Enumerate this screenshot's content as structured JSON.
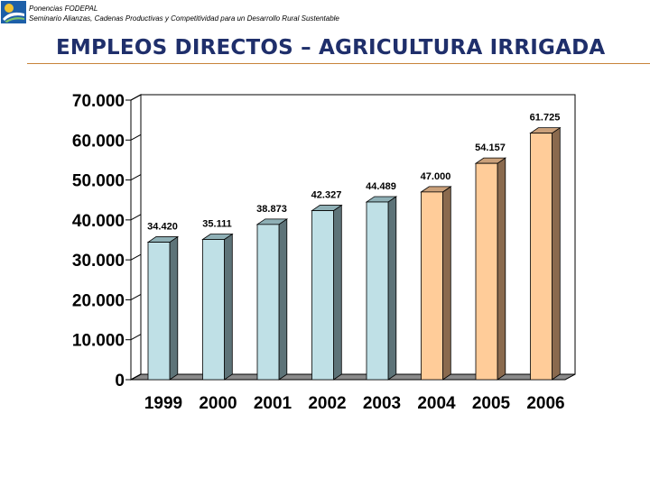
{
  "header": {
    "line1": "Ponencias FODEPAL",
    "line2": "Seminario Alianzas, Cadenas Productivas y Competitividad para un Desarrollo Rural Sustentable",
    "title": "EMPLEOS DIRECTOS – AGRICULTURA IRRIGADA"
  },
  "colors": {
    "title": "#1f2f6b",
    "rule": "#c8843a",
    "bar_blue_front": "#bfe0e6",
    "bar_blue_side": "#5d7378",
    "bar_blue_top": "#8fb0b6",
    "bar_orange_front": "#ffcc99",
    "bar_orange_side": "#8a6a4e",
    "bar_orange_top": "#caa07a",
    "floor": "#8a8a8a"
  },
  "chart_data": {
    "type": "bar",
    "title": "",
    "xlabel": "",
    "ylabel": "",
    "categories": [
      "1999",
      "2000",
      "2001",
      "2002",
      "2003",
      "2004",
      "2005",
      "2006"
    ],
    "values": [
      34420,
      35111,
      38873,
      42327,
      44489,
      47000,
      54157,
      61725
    ],
    "value_labels": [
      "34.420",
      "35.111",
      "38.873",
      "42.327",
      "44.489",
      "47.000",
      "54.157",
      "61.725"
    ],
    "group": [
      "historical",
      "historical",
      "historical",
      "historical",
      "historical",
      "projected",
      "projected",
      "projected"
    ],
    "ylim": [
      0,
      70000
    ],
    "yticks": [
      0,
      10000,
      20000,
      30000,
      40000,
      50000,
      60000,
      70000
    ],
    "ytick_labels": [
      "0",
      "10.000",
      "20.000",
      "30.000",
      "40.000",
      "50.000",
      "60.000",
      "70.000"
    ],
    "grid": false,
    "legend": "none"
  }
}
